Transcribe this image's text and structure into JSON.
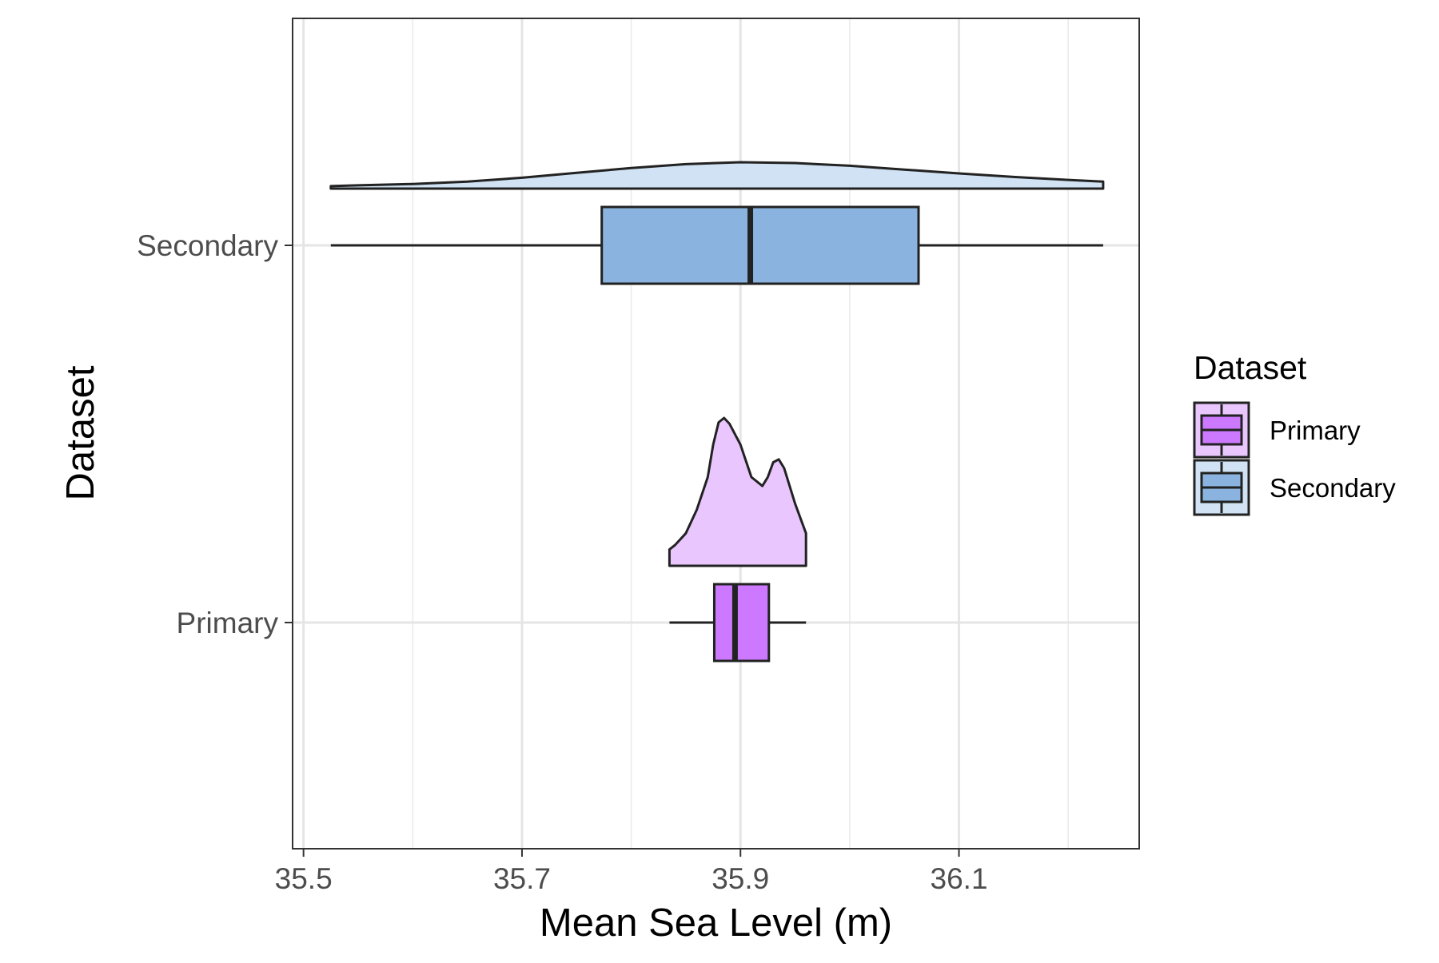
{
  "chart_data": {
    "type": "boxplot",
    "subtype": "raincloud (half-violin density + horizontal boxplot)",
    "title": "",
    "xlabel": "Mean Sea Level (m)",
    "ylabel": "Dataset",
    "xlim": [
      35.49,
      36.265
    ],
    "x_ticks": [
      35.5,
      35.7,
      35.9,
      36.1
    ],
    "x_tick_labels": [
      "35.5",
      "35.7",
      "35.9",
      "36.1"
    ],
    "categories": [
      "Secondary",
      "Primary"
    ],
    "grid": true,
    "legend_position": "right",
    "legend": {
      "title": "Dataset",
      "items": [
        {
          "label": "Primary",
          "box_fill": "#CC79FF",
          "density_fill": "#EAC6FF"
        },
        {
          "label": "Secondary",
          "box_fill": "#8AB4DF",
          "density_fill": "#D0E2F3"
        }
      ]
    },
    "series": [
      {
        "name": "Secondary",
        "box": {
          "min": 35.525,
          "q1": 35.773,
          "median": 35.909,
          "q3": 36.063,
          "max": 36.232
        },
        "box_fill": "#8AB4DF",
        "density_fill": "#D0E2F3",
        "density": {
          "x": [
            35.525,
            35.55,
            35.6,
            35.65,
            35.7,
            35.75,
            35.8,
            35.85,
            35.9,
            35.95,
            36.0,
            36.05,
            36.1,
            36.15,
            36.2,
            36.232
          ],
          "y": [
            0.09,
            0.12,
            0.17,
            0.26,
            0.4,
            0.58,
            0.76,
            0.9,
            0.97,
            0.94,
            0.84,
            0.7,
            0.56,
            0.43,
            0.32,
            0.26
          ]
        }
      },
      {
        "name": "Primary",
        "box": {
          "min": 35.835,
          "q1": 35.876,
          "median": 35.895,
          "q3": 35.926,
          "max": 35.96
        },
        "box_fill": "#CC79FF",
        "density_fill": "#EAC6FF",
        "density": {
          "x": [
            35.835,
            35.84,
            35.85,
            35.86,
            35.87,
            35.875,
            35.88,
            35.885,
            35.89,
            35.9,
            35.91,
            35.92,
            35.925,
            35.93,
            35.935,
            35.94,
            35.95,
            35.96
          ],
          "y": [
            0.11,
            0.14,
            0.22,
            0.38,
            0.6,
            0.82,
            0.97,
            1.0,
            0.96,
            0.82,
            0.6,
            0.54,
            0.6,
            0.7,
            0.72,
            0.66,
            0.42,
            0.22
          ]
        }
      }
    ]
  }
}
